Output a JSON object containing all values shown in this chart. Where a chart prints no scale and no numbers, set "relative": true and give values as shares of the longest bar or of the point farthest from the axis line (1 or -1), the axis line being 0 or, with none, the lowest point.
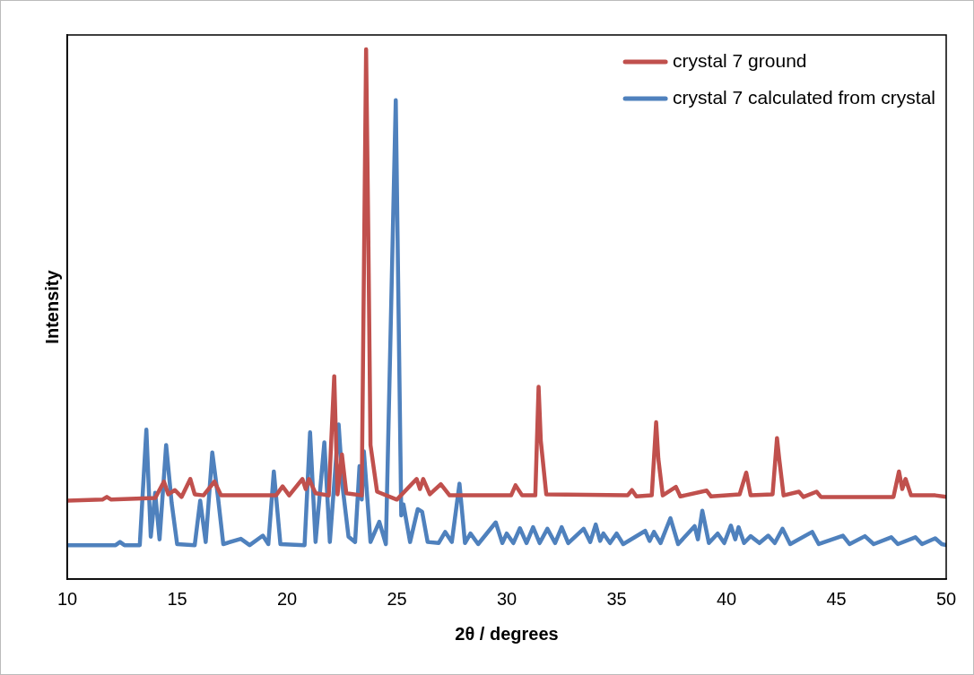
{
  "chart_data": {
    "type": "line",
    "xlabel": "2θ / degrees",
    "ylabel": "Intensity",
    "relative": true,
    "xlim": [
      10,
      50
    ],
    "xticks": [
      10,
      15,
      20,
      25,
      30,
      35,
      40,
      45,
      50
    ],
    "grid": false,
    "legend": "top right",
    "marker": "none",
    "line_style": "solid",
    "series": [
      {
        "name": "crystal 7 ground",
        "color": "#c0504d",
        "x": [
          10,
          11.6,
          11.8,
          12,
          14,
          14.4,
          14.6,
          14.9,
          15.2,
          15.6,
          15.8,
          16.2,
          16.7,
          17,
          19.5,
          19.8,
          20.1,
          20.7,
          20.85,
          21,
          21.3,
          21.9,
          22.15,
          22.3,
          22.5,
          22.7,
          23.4,
          23.6,
          23.7,
          23.8,
          24.1,
          25,
          25.9,
          26.05,
          26.2,
          26.5,
          27,
          27.4,
          30.2,
          30.4,
          30.7,
          31.3,
          31.45,
          31.55,
          31.8,
          35.5,
          35.7,
          35.9,
          36.6,
          36.8,
          36.9,
          37.1,
          37.7,
          37.9,
          39.1,
          39.3,
          40.6,
          40.9,
          41.1,
          42.1,
          42.3,
          42.4,
          42.6,
          43.3,
          43.5,
          44.1,
          44.3,
          47.6,
          47.85,
          48,
          48.15,
          48.4,
          49.5,
          50
        ],
        "values": [
          0.148,
          0.15,
          0.155,
          0.15,
          0.153,
          0.184,
          0.16,
          0.168,
          0.155,
          0.189,
          0.16,
          0.158,
          0.184,
          0.158,
          0.158,
          0.175,
          0.158,
          0.189,
          0.17,
          0.189,
          0.162,
          0.158,
          0.383,
          0.16,
          0.235,
          0.162,
          0.158,
          1,
          0.65,
          0.253,
          0.165,
          0.15,
          0.189,
          0.17,
          0.189,
          0.16,
          0.179,
          0.158,
          0.158,
          0.177,
          0.158,
          0.158,
          0.363,
          0.261,
          0.16,
          0.158,
          0.168,
          0.156,
          0.158,
          0.296,
          0.227,
          0.158,
          0.174,
          0.156,
          0.167,
          0.156,
          0.16,
          0.201,
          0.158,
          0.16,
          0.266,
          0.227,
          0.158,
          0.165,
          0.155,
          0.165,
          0.155,
          0.155,
          0.203,
          0.17,
          0.189,
          0.158,
          0.158,
          0.155
        ]
      },
      {
        "name": "crystal 7 calculated from crystal",
        "color": "#4f81bd",
        "x": [
          10,
          12.2,
          12.4,
          12.6,
          13.3,
          13.6,
          13.8,
          14,
          14.2,
          14.5,
          14.75,
          15,
          15.8,
          16.05,
          16.3,
          16.6,
          16.85,
          17.1,
          17.9,
          18.3,
          18.9,
          19.15,
          19.4,
          19.7,
          20.8,
          21.05,
          21.3,
          21.7,
          21.95,
          22.35,
          22.55,
          22.8,
          23.1,
          23.3,
          23.4,
          23.5,
          23.8,
          24.2,
          24.5,
          24.95,
          25.2,
          25.3,
          25.6,
          25.95,
          26.15,
          26.4,
          26.9,
          27.2,
          27.5,
          27.85,
          28.1,
          28.35,
          28.7,
          29.5,
          29.8,
          30,
          30.3,
          30.6,
          30.9,
          31.2,
          31.5,
          31.85,
          32.2,
          32.5,
          32.8,
          33.5,
          33.8,
          34.05,
          34.25,
          34.4,
          34.7,
          35,
          35.3,
          36.3,
          36.5,
          36.7,
          37,
          37.45,
          37.8,
          38.55,
          38.7,
          38.9,
          39.2,
          39.6,
          39.9,
          40.2,
          40.4,
          40.55,
          40.8,
          41.1,
          41.5,
          41.9,
          42.2,
          42.55,
          42.9,
          43.9,
          44.2,
          45.3,
          45.6,
          46.3,
          46.7,
          47.5,
          47.8,
          48.6,
          48.9,
          49.5,
          49.8,
          50
        ],
        "values": [
          0.064,
          0.064,
          0.07,
          0.064,
          0.064,
          0.282,
          0.08,
          0.163,
          0.075,
          0.253,
          0.144,
          0.066,
          0.064,
          0.148,
          0.07,
          0.239,
          0.158,
          0.066,
          0.076,
          0.064,
          0.082,
          0.066,
          0.203,
          0.066,
          0.064,
          0.277,
          0.07,
          0.258,
          0.07,
          0.292,
          0.167,
          0.08,
          0.07,
          0.213,
          0.15,
          0.241,
          0.07,
          0.108,
          0.066,
          0.904,
          0.12,
          0.141,
          0.07,
          0.132,
          0.127,
          0.07,
          0.068,
          0.089,
          0.07,
          0.18,
          0.068,
          0.086,
          0.066,
          0.107,
          0.068,
          0.086,
          0.068,
          0.096,
          0.068,
          0.098,
          0.068,
          0.095,
          0.068,
          0.098,
          0.068,
          0.095,
          0.07,
          0.103,
          0.072,
          0.086,
          0.068,
          0.086,
          0.066,
          0.091,
          0.072,
          0.089,
          0.068,
          0.115,
          0.066,
          0.1,
          0.075,
          0.129,
          0.068,
          0.086,
          0.068,
          0.101,
          0.075,
          0.098,
          0.068,
          0.081,
          0.068,
          0.082,
          0.068,
          0.095,
          0.066,
          0.089,
          0.066,
          0.082,
          0.066,
          0.081,
          0.066,
          0.079,
          0.066,
          0.079,
          0.066,
          0.077,
          0.066,
          0.064
        ]
      }
    ]
  }
}
